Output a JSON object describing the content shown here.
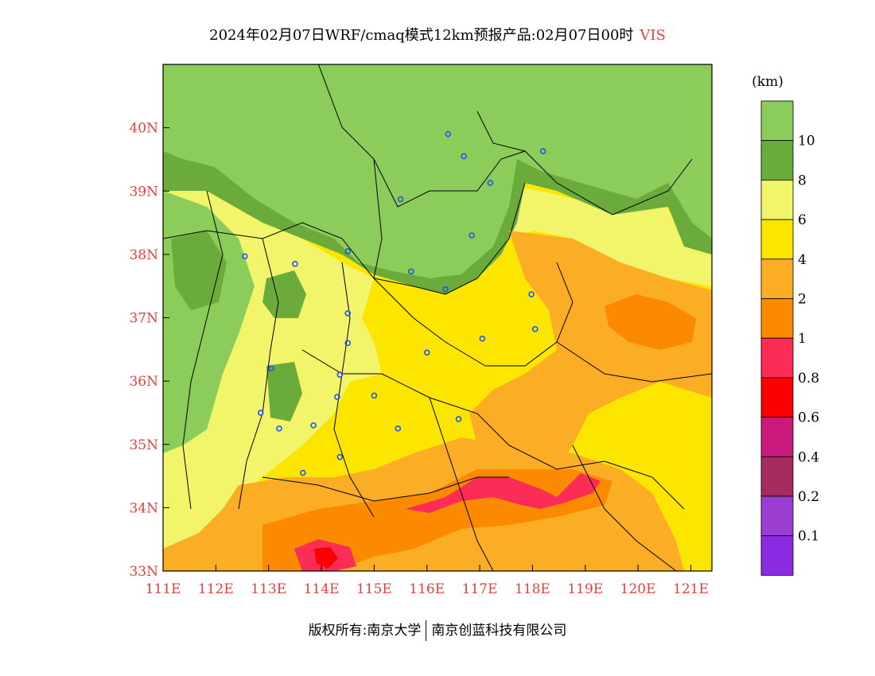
{
  "title": {
    "text": "2024年02月07日WRF/cmaq模式12km预报产品:02月07日00时",
    "variable": "VIS"
  },
  "map": {
    "lon_ticks": [
      "111E",
      "112E",
      "113E",
      "114E",
      "115E",
      "116E",
      "117E",
      "118E",
      "119E",
      "120E",
      "121E"
    ],
    "lat_ticks": [
      "33N",
      "34N",
      "35N",
      "36N",
      "37N",
      "38N",
      "39N",
      "40N"
    ],
    "tick_color": "#e8403a",
    "extent": {
      "lon": [
        111,
        121.4
      ],
      "lat": [
        33,
        41
      ]
    },
    "markers": [
      {
        "lon": 116.4,
        "lat": 39.9
      },
      {
        "lon": 116.7,
        "lat": 39.55
      },
      {
        "lon": 117.2,
        "lat": 39.13
      },
      {
        "lon": 118.2,
        "lat": 39.63
      },
      {
        "lon": 115.5,
        "lat": 38.87
      },
      {
        "lon": 116.85,
        "lat": 38.3
      },
      {
        "lon": 114.5,
        "lat": 38.05
      },
      {
        "lon": 112.55,
        "lat": 37.97
      },
      {
        "lon": 113.5,
        "lat": 37.85
      },
      {
        "lon": 115.7,
        "lat": 37.73
      },
      {
        "lon": 116.35,
        "lat": 37.45
      },
      {
        "lon": 117.98,
        "lat": 37.37
      },
      {
        "lon": 117.05,
        "lat": 36.67
      },
      {
        "lon": 118.05,
        "lat": 36.82
      },
      {
        "lon": 114.5,
        "lat": 37.07
      },
      {
        "lon": 114.5,
        "lat": 36.6
      },
      {
        "lon": 116.0,
        "lat": 36.45
      },
      {
        "lon": 114.35,
        "lat": 36.1
      },
      {
        "lon": 113.05,
        "lat": 36.2
      },
      {
        "lon": 114.3,
        "lat": 35.75
      },
      {
        "lon": 115.0,
        "lat": 35.77
      },
      {
        "lon": 112.85,
        "lat": 35.5
      },
      {
        "lon": 113.2,
        "lat": 35.25
      },
      {
        "lon": 113.85,
        "lat": 35.3
      },
      {
        "lon": 115.45,
        "lat": 35.25
      },
      {
        "lon": 116.6,
        "lat": 35.4
      },
      {
        "lon": 114.35,
        "lat": 34.8
      },
      {
        "lon": 113.65,
        "lat": 34.55
      }
    ]
  },
  "legend": {
    "unit": "(km)",
    "levels": [
      {
        "label": "10",
        "color": "#8ccc5a"
      },
      {
        "label": "8",
        "color": "#6aab3c"
      },
      {
        "label": "6",
        "color": "#f2f56a"
      },
      {
        "label": "4",
        "color": "#fce600"
      },
      {
        "label": "2",
        "color": "#fbad26"
      },
      {
        "label": "1",
        "color": "#fb8a00"
      },
      {
        "label": "0.8",
        "color": "#fb2c55"
      },
      {
        "label": "0.6",
        "color": "#fa0000"
      },
      {
        "label": "0.4",
        "color": "#c9197c"
      },
      {
        "label": "0.2",
        "color": "#a62b5e"
      },
      {
        "label": "0.1",
        "color": "#9b3dd0"
      },
      {
        "label": "",
        "color": "#8a2be2"
      }
    ]
  },
  "footer": {
    "left": "版权所有:南京大学",
    "right": "南京创蓝科技有限公司"
  }
}
